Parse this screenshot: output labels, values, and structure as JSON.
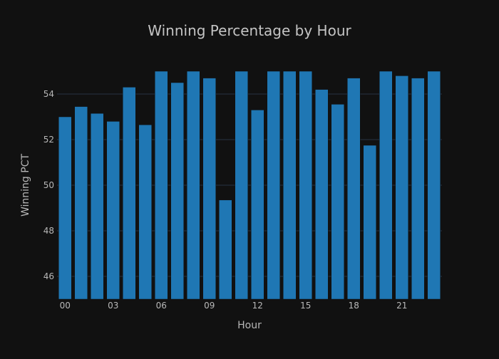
{
  "chart_data": {
    "type": "bar",
    "title": "Winning Percentage by Hour",
    "xlabel": "Hour",
    "ylabel": "Winning PCT",
    "categories": [
      "00",
      "01",
      "02",
      "03",
      "04",
      "05",
      "06",
      "07",
      "08",
      "09",
      "10",
      "11",
      "12",
      "13",
      "14",
      "15",
      "16",
      "17",
      "18",
      "19",
      "20",
      "21",
      "22",
      "23"
    ],
    "x_tick_labels": [
      "00",
      "03",
      "06",
      "09",
      "12",
      "15",
      "18",
      "21"
    ],
    "values": [
      53.0,
      53.45,
      53.15,
      52.8,
      54.3,
      52.65,
      55.0,
      54.5,
      55.0,
      54.7,
      49.35,
      55.0,
      53.3,
      55.0,
      55.0,
      55.0,
      54.2,
      53.55,
      54.7,
      51.75,
      55.0,
      54.8,
      54.7,
      55.0
    ],
    "ylim": [
      45,
      55
    ],
    "y_ticks": [
      46,
      48,
      50,
      52,
      54
    ],
    "grid": true,
    "legend": "none",
    "colors": {
      "background": "#111111",
      "bar": "#1f77b4",
      "grid": "#283442",
      "text": "#b8b8b8"
    }
  }
}
